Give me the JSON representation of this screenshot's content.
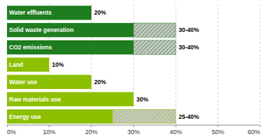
{
  "chart_data": {
    "type": "bar",
    "orientation": "horizontal",
    "stacked": true,
    "data_labels": true,
    "grid": true,
    "categories": [
      "Water effluents",
      "Solid waste generation",
      "CO2 emissions",
      "Land",
      "Water use",
      "Raw materials use",
      "Energy use"
    ],
    "series": [
      {
        "values": [
          20,
          30,
          30,
          10,
          20,
          30,
          25
        ],
        "colors": [
          "#1e7d1e",
          "#1e7d1e",
          "#1e7d1e",
          "#8dc000",
          "#8dc000",
          "#8dc000",
          "#8dc000"
        ],
        "value_labels": [
          "20%",
          "30-40%",
          "30-40%",
          "10%",
          "20%",
          "30%",
          "25-40%"
        ]
      },
      {
        "values": [
          0,
          10,
          10,
          0,
          0,
          0,
          15
        ],
        "color": "#c8c8c8",
        "colors": [
          "#1e7d1e",
          "#1e7d1e",
          "#1e7d1e",
          "#8dc000",
          "#8dc000",
          "#8dc000",
          "#8dc000"
        ]
      }
    ],
    "xlim": [
      0,
      60
    ],
    "xticks": [
      {
        "value": 0,
        "label": "0%"
      },
      {
        "value": 10,
        "label": "10%"
      },
      {
        "value": 20,
        "label": "20%"
      },
      {
        "value": 30,
        "label": "30%"
      },
      {
        "value": 40,
        "label": "40%"
      },
      {
        "value": 50,
        "label": "50%"
      },
      {
        "value": 60,
        "label": "60%"
      }
    ]
  }
}
